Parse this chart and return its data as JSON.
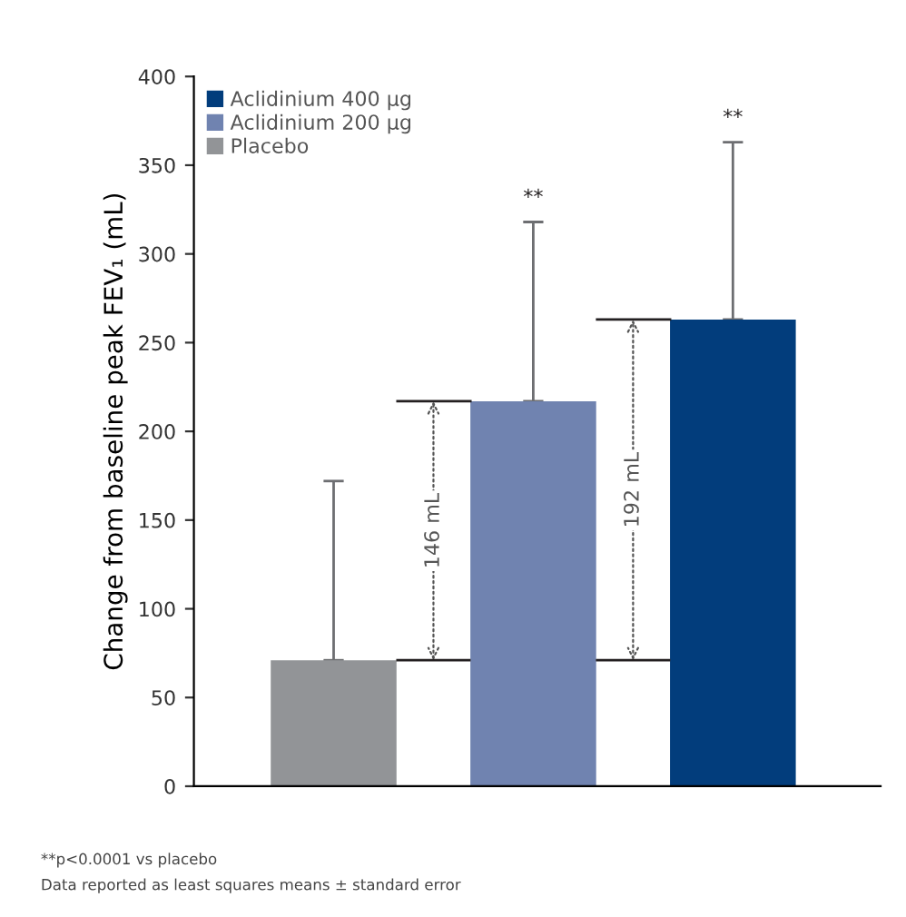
{
  "chart_data": {
    "type": "bar",
    "ylabel": "Change from baseline peak FEV₁ (mL)",
    "categories": [
      null,
      null,
      null
    ],
    "series": [
      {
        "name": "Aclidinium 400 µg",
        "color": "#023d7c",
        "values": [
          null,
          null,
          263
        ],
        "errors": [
          null,
          null,
          [
            263,
            363
          ]
        ]
      },
      {
        "name": "Aclidinium 200 µg",
        "color": "#7083b0",
        "values": [
          null,
          217,
          null
        ],
        "errors": [
          null,
          [
            217,
            318
          ],
          null
        ]
      },
      {
        "name": "Placebo",
        "color": "#929497",
        "values": [
          71,
          null,
          null
        ],
        "errors": [
          [
            71,
            172
          ],
          null,
          null
        ]
      }
    ],
    "ylim": [
      0,
      400
    ],
    "yticks": [
      0,
      50,
      100,
      150,
      200,
      250,
      300,
      350,
      400
    ],
    "grid": false,
    "legend": "top left",
    "annotations": [
      "146 mL",
      "192 mL",
      "**",
      "**",
      "**p<0.0001 vs placebo",
      "Data reported as least squares means ± standard error"
    ]
  }
}
